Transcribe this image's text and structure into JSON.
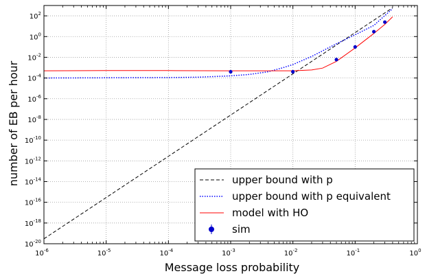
{
  "chart_data": {
    "type": "line",
    "title": "",
    "xlabel": "Message loss probability",
    "ylabel": "number of EB per hour",
    "x_scale": "log",
    "y_scale": "log",
    "xlim": [
      1e-06,
      1
    ],
    "ylim": [
      1e-20,
      1000
    ],
    "x_tick_exponents": [
      -6,
      -5,
      -4,
      -3,
      -2,
      -1,
      0
    ],
    "y_tick_exponents": [
      -20,
      -18,
      -16,
      -14,
      -12,
      -10,
      -8,
      -6,
      -4,
      -2,
      0,
      2
    ],
    "tick_base": "10",
    "grid": true,
    "legend_position": "lower-right",
    "series": [
      {
        "name": "upper bound with p",
        "style": "dashed",
        "color": "#000000",
        "x": [
          1e-06,
          0.4
        ],
        "y": [
          3e-20,
          600
        ]
      },
      {
        "name": "upper bound with p equivalent",
        "style": "dotted",
        "color": "#0000ff",
        "x": [
          1e-06,
          1e-05,
          0.0001,
          0.0003,
          0.001,
          0.002,
          0.004,
          0.007,
          0.01,
          0.02,
          0.05,
          0.1,
          0.2,
          0.4
        ],
        "y": [
          0.0001,
          0.000105,
          0.00011,
          0.00012,
          0.00016,
          0.00022,
          0.0004,
          0.001,
          0.002,
          0.012,
          0.2,
          1.5,
          12,
          500
        ]
      },
      {
        "name": "model with HO",
        "style": "solid",
        "color": "#ff0000",
        "x": [
          1e-06,
          1e-05,
          0.0001,
          0.001,
          0.005,
          0.01,
          0.02,
          0.03,
          0.05,
          0.1,
          0.2,
          0.3,
          0.4
        ],
        "y": [
          0.0005,
          0.00052,
          0.00052,
          0.0005,
          0.0005,
          0.0005,
          0.0006,
          0.0009,
          0.004,
          0.08,
          2,
          15,
          80
        ]
      },
      {
        "name": "sim",
        "style": "markers",
        "color": "#0000cc",
        "x": [
          0.001,
          0.01,
          0.05,
          0.1,
          0.2,
          0.3
        ],
        "y": [
          0.0004,
          0.0004,
          0.006,
          0.1,
          3,
          25
        ]
      }
    ]
  }
}
